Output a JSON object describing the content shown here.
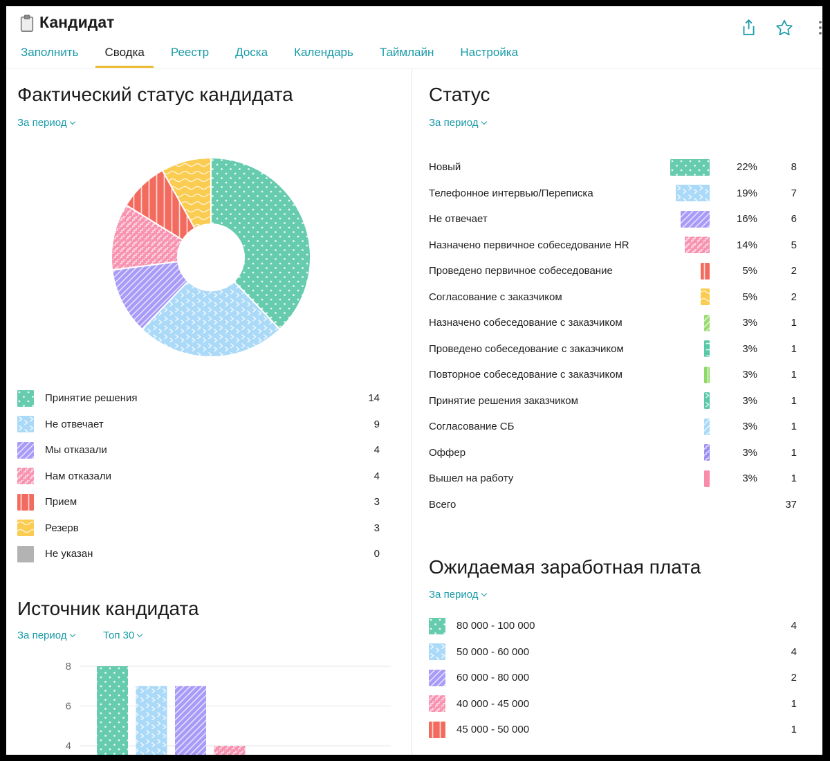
{
  "header": {
    "title": "Кандидат",
    "icons": [
      "share",
      "favorite",
      "more"
    ]
  },
  "tabs": [
    {
      "label": "Заполнить",
      "active": false
    },
    {
      "label": "Сводка",
      "active": true
    },
    {
      "label": "Реестр",
      "active": false
    },
    {
      "label": "Доска",
      "active": false
    },
    {
      "label": "Календарь",
      "active": false
    },
    {
      "label": "Таймлайн",
      "active": false
    },
    {
      "label": "Настройка",
      "active": false
    }
  ],
  "colors": {
    "accent": "#189aa7",
    "active_tab_underline": "#edba33",
    "text": "#212121",
    "axis": "#6b6b6b",
    "gridline": "#e6e6e6",
    "divider": "#e4e4e4"
  },
  "patterns": [
    {
      "id": "p-teal-dots",
      "color": "#67cbae",
      "motif": "dots"
    },
    {
      "id": "p-blue-chevron",
      "color": "#abd9f8",
      "motif": "chevron"
    },
    {
      "id": "p-purple-diag",
      "color": "#a89bf8",
      "motif": "diag"
    },
    {
      "id": "p-pink-zigzag",
      "color": "#f793b1",
      "motif": "zigzag"
    },
    {
      "id": "p-red-vstripe",
      "color": "#f26b5e",
      "motif": "vstripe"
    },
    {
      "id": "p-yellow-wave",
      "color": "#facc52",
      "motif": "wave"
    },
    {
      "id": "p-gray-solid",
      "color": "#b3b3b3",
      "motif": "solid"
    },
    {
      "id": "p-lgreen-diag",
      "color": "#9adc73",
      "motif": "diag"
    },
    {
      "id": "p-teal-dash",
      "color": "#58c8a7",
      "motif": "dash"
    },
    {
      "id": "p-green-vstripe",
      "color": "#8cd968",
      "motif": "vstripe"
    },
    {
      "id": "p-teal-chevron",
      "color": "#5bc9a8",
      "motif": "chevron"
    },
    {
      "id": "p-blue-diag",
      "color": "#abd9f8",
      "motif": "diag"
    },
    {
      "id": "p-purple-zigzag",
      "color": "#9a8df2",
      "motif": "zigzag"
    },
    {
      "id": "p-pink-solid",
      "color": "#f98ca9",
      "motif": "solid"
    }
  ],
  "sections": {
    "actual_status": {
      "title": "Фактический статус кандидата",
      "period_label": "За период",
      "legend": [
        {
          "label": "Принятие решения",
          "value": "14",
          "pattern": "p-teal-dots"
        },
        {
          "label": "Не отвечает",
          "value": "9",
          "pattern": "p-blue-chevron"
        },
        {
          "label": "Мы отказали",
          "value": "4",
          "pattern": "p-purple-diag"
        },
        {
          "label": "Нам отказали",
          "value": "4",
          "pattern": "p-pink-zigzag"
        },
        {
          "label": "Прием",
          "value": "3",
          "pattern": "p-red-vstripe"
        },
        {
          "label": "Резерв",
          "value": "3",
          "pattern": "p-yellow-wave"
        },
        {
          "label": "Не указан",
          "value": "0",
          "pattern": "p-gray-solid"
        }
      ]
    },
    "status": {
      "title": "Статус",
      "period_label": "За период",
      "rows": [
        {
          "label": "Новый",
          "percent": "22%",
          "count": "8",
          "pattern": "p-teal-dots"
        },
        {
          "label": "Телефонное интервью/Переписка",
          "percent": "19%",
          "count": "7",
          "pattern": "p-blue-chevron"
        },
        {
          "label": "Не отвечает",
          "percent": "16%",
          "count": "6",
          "pattern": "p-purple-diag"
        },
        {
          "label": "Назначено первичное собеседование HR",
          "percent": "14%",
          "count": "5",
          "pattern": "p-pink-zigzag"
        },
        {
          "label": "Проведено первичное собеседование",
          "percent": "5%",
          "count": "2",
          "pattern": "p-red-vstripe"
        },
        {
          "label": "Согласование с заказчиком",
          "percent": "5%",
          "count": "2",
          "pattern": "p-yellow-wave"
        },
        {
          "label": "Назначено собеседование с заказчиком",
          "percent": "3%",
          "count": "1",
          "pattern": "p-lgreen-diag"
        },
        {
          "label": "Проведено собеседование с заказчиком",
          "percent": "3%",
          "count": "1",
          "pattern": "p-teal-dash"
        },
        {
          "label": "Повторное собеседование с заказчиком",
          "percent": "3%",
          "count": "1",
          "pattern": "p-green-vstripe"
        },
        {
          "label": "Принятие решения заказчиком",
          "percent": "3%",
          "count": "1",
          "pattern": "p-teal-chevron"
        },
        {
          "label": "Согласование СБ",
          "percent": "3%",
          "count": "1",
          "pattern": "p-blue-diag"
        },
        {
          "label": "Оффер",
          "percent": "3%",
          "count": "1",
          "pattern": "p-purple-zigzag"
        },
        {
          "label": "Вышел на работу",
          "percent": "3%",
          "count": "1",
          "pattern": "p-pink-solid"
        }
      ],
      "total": {
        "label": "Всего",
        "value": "37"
      }
    },
    "source": {
      "title": "Источник кандидата",
      "period_label": "За период",
      "top_label": "Топ 30"
    },
    "salary": {
      "title": "Ожидаемая заработная плата",
      "period_label": "За период",
      "rows": [
        {
          "label": "80 000 - 100 000",
          "value": "4",
          "pattern": "p-teal-dots"
        },
        {
          "label": "50 000 - 60 000",
          "value": "4",
          "pattern": "p-blue-chevron"
        },
        {
          "label": "60 000 - 80 000",
          "value": "2",
          "pattern": "p-purple-diag"
        },
        {
          "label": "40 000 - 45 000",
          "value": "1",
          "pattern": "p-pink-zigzag"
        },
        {
          "label": "45 000 - 50 000",
          "value": "1",
          "pattern": "p-red-vstripe"
        }
      ]
    }
  },
  "chart_data": [
    {
      "type": "pie",
      "title": "Фактический статус кандидата",
      "labels": [
        "Принятие решения",
        "Не отвечает",
        "Мы отказали",
        "Нам отказали",
        "Прием",
        "Резерв",
        "Не указан"
      ],
      "values": [
        14,
        9,
        4,
        4,
        3,
        3,
        0
      ],
      "total": 37,
      "donut": true,
      "patterns": [
        "p-teal-dots",
        "p-blue-chevron",
        "p-purple-diag",
        "p-pink-zigzag",
        "p-red-vstripe",
        "p-yellow-wave",
        "p-gray-solid"
      ],
      "legend_position": "bottom"
    },
    {
      "type": "bar",
      "title": "Источник кандидата",
      "values": [
        8,
        7,
        7,
        4
      ],
      "patterns": [
        "p-teal-dots",
        "p-blue-chevron",
        "p-purple-diag",
        "p-pink-zigzag"
      ],
      "yticks": [
        8,
        6,
        4
      ],
      "grid": true,
      "note": "x-axis labels clipped out of view"
    }
  ]
}
